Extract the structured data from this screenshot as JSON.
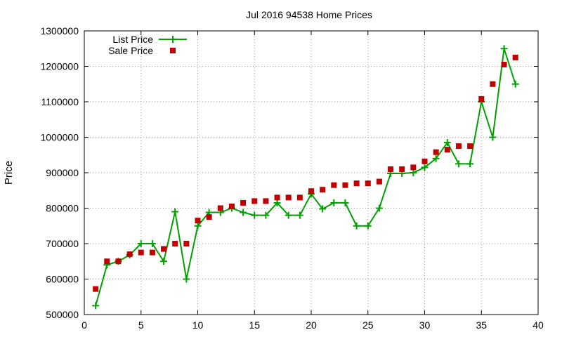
{
  "chart_data": {
    "type": "line",
    "title": "Jul 2016 94538 Home Prices",
    "xlabel": "",
    "ylabel": "Price",
    "xlim": [
      0,
      40
    ],
    "ylim": [
      500000,
      1300000
    ],
    "xticks": [
      0,
      5,
      10,
      15,
      20,
      25,
      30,
      35,
      40
    ],
    "yticks": [
      500000,
      600000,
      700000,
      800000,
      900000,
      1000000,
      1100000,
      1200000,
      1300000
    ],
    "grid": true,
    "legend_position": "top-left",
    "series": [
      {
        "name": "List Price",
        "style": "line-with-plus-markers",
        "color": "#00a000",
        "x": [
          1,
          2,
          3,
          4,
          5,
          6,
          7,
          8,
          9,
          10,
          11,
          12,
          13,
          14,
          15,
          16,
          17,
          18,
          19,
          20,
          21,
          22,
          23,
          24,
          25,
          26,
          27,
          28,
          29,
          30,
          31,
          32,
          33,
          34,
          35,
          36,
          37,
          38
        ],
        "y": [
          525000,
          640000,
          650000,
          668000,
          700000,
          700000,
          650000,
          790000,
          600000,
          750000,
          788000,
          788000,
          800000,
          788000,
          780000,
          780000,
          815000,
          780000,
          780000,
          840000,
          798000,
          815000,
          815000,
          750000,
          750000,
          800000,
          898000,
          898000,
          900000,
          915000,
          940000,
          985000,
          925000,
          925000,
          1100000,
          1000000,
          1250000,
          1150000
        ]
      },
      {
        "name": "Sale Price",
        "style": "square-markers",
        "color": "#c00000",
        "x": [
          1,
          2,
          3,
          4,
          5,
          6,
          7,
          8,
          9,
          10,
          11,
          12,
          13,
          14,
          15,
          16,
          17,
          18,
          19,
          20,
          21,
          22,
          23,
          24,
          25,
          26,
          27,
          28,
          29,
          30,
          31,
          32,
          33,
          34,
          35,
          36,
          37,
          38
        ],
        "y": [
          572000,
          650000,
          650000,
          670000,
          675000,
          675000,
          685000,
          700000,
          700000,
          765000,
          775000,
          800000,
          805000,
          815000,
          820000,
          820000,
          830000,
          830000,
          830000,
          848000,
          852000,
          865000,
          865000,
          870000,
          870000,
          875000,
          910000,
          910000,
          915000,
          932000,
          958000,
          965000,
          975000,
          975000,
          1108000,
          1150000,
          1205000,
          1225000
        ]
      }
    ]
  }
}
